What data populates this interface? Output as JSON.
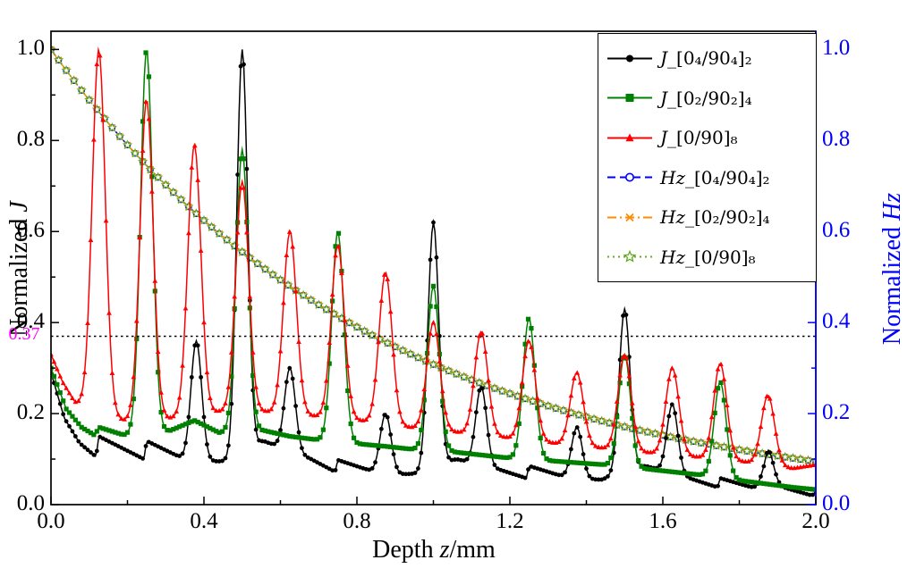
{
  "axes": {
    "x": {
      "title_text": "Depth ",
      "title_math": "z",
      "title_unit": "/mm",
      "range": [
        0,
        2
      ],
      "tick_values": [
        0,
        0.4,
        0.8,
        1.2,
        1.6,
        2.0
      ],
      "ticks": [
        "0.0",
        "0.4",
        "0.8",
        "1.2",
        "1.6",
        "2.0"
      ]
    },
    "y_left": {
      "title_text": "Normalized ",
      "title_math": "J",
      "range": [
        0,
        1.04
      ],
      "tick_values": [
        0,
        0.2,
        0.4,
        0.6,
        0.8,
        1.0
      ],
      "ticks": [
        "0.0",
        "0.2",
        "0.4",
        "0.6",
        "0.8",
        "1.0"
      ],
      "color": "#000000"
    },
    "y_right": {
      "title_text": "Normalized ",
      "title_math": "Hz",
      "range": [
        0,
        1.04
      ],
      "tick_values": [
        0,
        0.2,
        0.4,
        0.6,
        0.8,
        1.0
      ],
      "ticks": [
        "0.0",
        "0.2",
        "0.4",
        "0.6",
        "0.8",
        "1.0"
      ],
      "color": "#0000ff"
    }
  },
  "threshold": {
    "value": 0.37,
    "label": "0.37",
    "label_color": "#ff00ff",
    "line_color": "#000000",
    "style": "dotted"
  },
  "legend": {
    "items": [
      {
        "var": "J",
        "suffix": "_[0₄/90₄]₂",
        "color": "#000000",
        "line": "solid",
        "marker": "circle"
      },
      {
        "var": "J",
        "suffix": "_[0₂/90₂]₄",
        "color": "#008000",
        "line": "solid",
        "marker": "square"
      },
      {
        "var": "J",
        "suffix": "_[0/90]₈",
        "color": "#ff0000",
        "line": "solid",
        "marker": "triangle"
      },
      {
        "var": "Hz",
        "suffix": "_[0₄/90₄]₂",
        "color": "#0000ff",
        "line": "dashed",
        "marker": "circle-open"
      },
      {
        "var": "Hz",
        "suffix": "_[0₂/90₂]₄",
        "color": "#ff8c00",
        "line": "dashdot",
        "marker": "x"
      },
      {
        "var": "Hz",
        "suffix": "_[0/90]₈",
        "color": "#66aa22",
        "line": "dotted",
        "marker": "star-open"
      }
    ]
  },
  "chart_data": {
    "type": "line",
    "title": "",
    "xlabel": "Depth z/mm",
    "ylabel_left": "Normalized J",
    "ylabel_right": "Normalized Hz",
    "x_range": [
      0,
      2
    ],
    "y_range": [
      0,
      1.04
    ],
    "threshold_y": 0.37,
    "series": [
      {
        "name": "J_[0₄/90₄]₂",
        "kind": "J",
        "axis": "left",
        "color": "#000000",
        "marker": "circle",
        "line": "solid",
        "peak_sigma": 0.02,
        "peaks": [
          [
            0.38,
            0.36
          ],
          [
            0.5,
            1.0
          ],
          [
            0.625,
            0.3
          ],
          [
            0.875,
            0.2
          ],
          [
            1.0,
            0.62
          ],
          [
            1.125,
            0.26
          ],
          [
            1.375,
            0.17
          ],
          [
            1.5,
            0.43
          ],
          [
            1.625,
            0.22
          ],
          [
            1.875,
            0.12
          ]
        ],
        "baseline": [
          [
            0,
            0.29
          ],
          [
            0.035,
            0.19
          ],
          [
            0.075,
            0.135
          ],
          [
            0.118,
            0.105
          ],
          [
            0.125,
            0.15
          ],
          [
            0.243,
            0.1
          ],
          [
            0.25,
            0.14
          ],
          [
            0.36,
            0.095
          ],
          [
            0.47,
            0.095
          ],
          [
            0.555,
            0.14
          ],
          [
            0.68,
            0.1
          ],
          [
            0.743,
            0.072
          ],
          [
            0.75,
            0.098
          ],
          [
            0.87,
            0.065
          ],
          [
            0.955,
            0.068
          ],
          [
            1.06,
            0.1
          ],
          [
            1.18,
            0.075
          ],
          [
            1.243,
            0.058
          ],
          [
            1.25,
            0.085
          ],
          [
            1.365,
            0.055
          ],
          [
            1.44,
            0.055
          ],
          [
            1.555,
            0.085
          ],
          [
            1.68,
            0.055
          ],
          [
            1.743,
            0.038
          ],
          [
            1.75,
            0.058
          ],
          [
            1.865,
            0.03
          ],
          [
            1.875,
            0.047
          ],
          [
            1.99,
            0.02
          ],
          [
            2.0,
            0.028
          ]
        ]
      },
      {
        "name": "J_[0₂/90₂]₄",
        "kind": "J",
        "axis": "left",
        "color": "#008000",
        "marker": "square",
        "line": "solid",
        "peak_sigma": 0.022,
        "peaks": [
          [
            0.25,
            1.0
          ],
          [
            0.5,
            0.78
          ],
          [
            0.75,
            0.6
          ],
          [
            1.0,
            0.48
          ],
          [
            1.25,
            0.41
          ],
          [
            1.5,
            0.33
          ],
          [
            1.75,
            0.27
          ]
        ],
        "baseline": [
          [
            0,
            0.3
          ],
          [
            0.04,
            0.21
          ],
          [
            0.08,
            0.17
          ],
          [
            0.115,
            0.152
          ],
          [
            0.125,
            0.17
          ],
          [
            0.19,
            0.153
          ],
          [
            0.31,
            0.162
          ],
          [
            0.375,
            0.185
          ],
          [
            0.44,
            0.158
          ],
          [
            0.56,
            0.162
          ],
          [
            0.625,
            0.15
          ],
          [
            0.69,
            0.143
          ],
          [
            0.81,
            0.133
          ],
          [
            0.875,
            0.128
          ],
          [
            0.94,
            0.122
          ],
          [
            1.06,
            0.115
          ],
          [
            1.19,
            0.103
          ],
          [
            1.31,
            0.096
          ],
          [
            1.44,
            0.088
          ],
          [
            1.56,
            0.078
          ],
          [
            1.69,
            0.066
          ],
          [
            1.81,
            0.052
          ],
          [
            1.94,
            0.038
          ],
          [
            2.0,
            0.033
          ]
        ]
      },
      {
        "name": "J_[0/90]₈",
        "kind": "J",
        "axis": "left",
        "color": "#ff0000",
        "marker": "triangle",
        "line": "solid",
        "peak_sigma": 0.024,
        "peaks": [
          [
            0.125,
            1.0
          ],
          [
            0.25,
            0.89
          ],
          [
            0.375,
            0.79
          ],
          [
            0.5,
            0.71
          ],
          [
            0.625,
            0.6
          ],
          [
            0.75,
            0.57
          ],
          [
            0.875,
            0.51
          ],
          [
            1.0,
            0.4
          ],
          [
            1.125,
            0.38
          ],
          [
            1.25,
            0.36
          ],
          [
            1.375,
            0.29
          ],
          [
            1.5,
            0.33
          ],
          [
            1.625,
            0.3
          ],
          [
            1.75,
            0.31
          ],
          [
            1.875,
            0.24
          ]
        ],
        "baseline": [
          [
            0,
            0.33
          ],
          [
            0.03,
            0.27
          ],
          [
            0.0625,
            0.225
          ],
          [
            0.19,
            0.185
          ],
          [
            0.31,
            0.19
          ],
          [
            0.44,
            0.205
          ],
          [
            0.56,
            0.205
          ],
          [
            0.69,
            0.195
          ],
          [
            0.81,
            0.185
          ],
          [
            0.94,
            0.17
          ],
          [
            1.06,
            0.16
          ],
          [
            1.19,
            0.148
          ],
          [
            1.31,
            0.136
          ],
          [
            1.44,
            0.125
          ],
          [
            1.56,
            0.115
          ],
          [
            1.69,
            0.105
          ],
          [
            1.81,
            0.095
          ],
          [
            1.94,
            0.08
          ],
          [
            2.0,
            0.088
          ]
        ]
      },
      {
        "name": "Hz_[0₄/90₄]₂",
        "kind": "Hz",
        "axis": "right",
        "color": "#0000ff",
        "marker": "circle-open",
        "line": "dashed",
        "x": [
          0,
          0.25,
          0.5,
          0.75,
          1.0,
          1.25,
          1.5,
          1.75,
          2.0
        ],
        "y": [
          1.0,
          0.745,
          0.555,
          0.414,
          0.308,
          0.23,
          0.171,
          0.128,
          0.095
        ]
      },
      {
        "name": "Hz_[0₂/90₂]₄",
        "kind": "Hz",
        "axis": "right",
        "color": "#ff8c00",
        "marker": "x",
        "line": "dashdot",
        "x": [
          0,
          0.25,
          0.5,
          0.75,
          1.0,
          1.25,
          1.5,
          1.75,
          2.0
        ],
        "y": [
          1.0,
          0.745,
          0.555,
          0.414,
          0.308,
          0.23,
          0.171,
          0.128,
          0.095
        ]
      },
      {
        "name": "Hz_[0/90]₈",
        "kind": "Hz",
        "axis": "right",
        "color": "#66aa22",
        "marker": "star-open",
        "line": "dotted",
        "x": [
          0,
          0.25,
          0.5,
          0.75,
          1.0,
          1.25,
          1.5,
          1.75,
          2.0
        ],
        "y": [
          1.0,
          0.745,
          0.555,
          0.414,
          0.308,
          0.23,
          0.171,
          0.128,
          0.095
        ]
      }
    ]
  }
}
